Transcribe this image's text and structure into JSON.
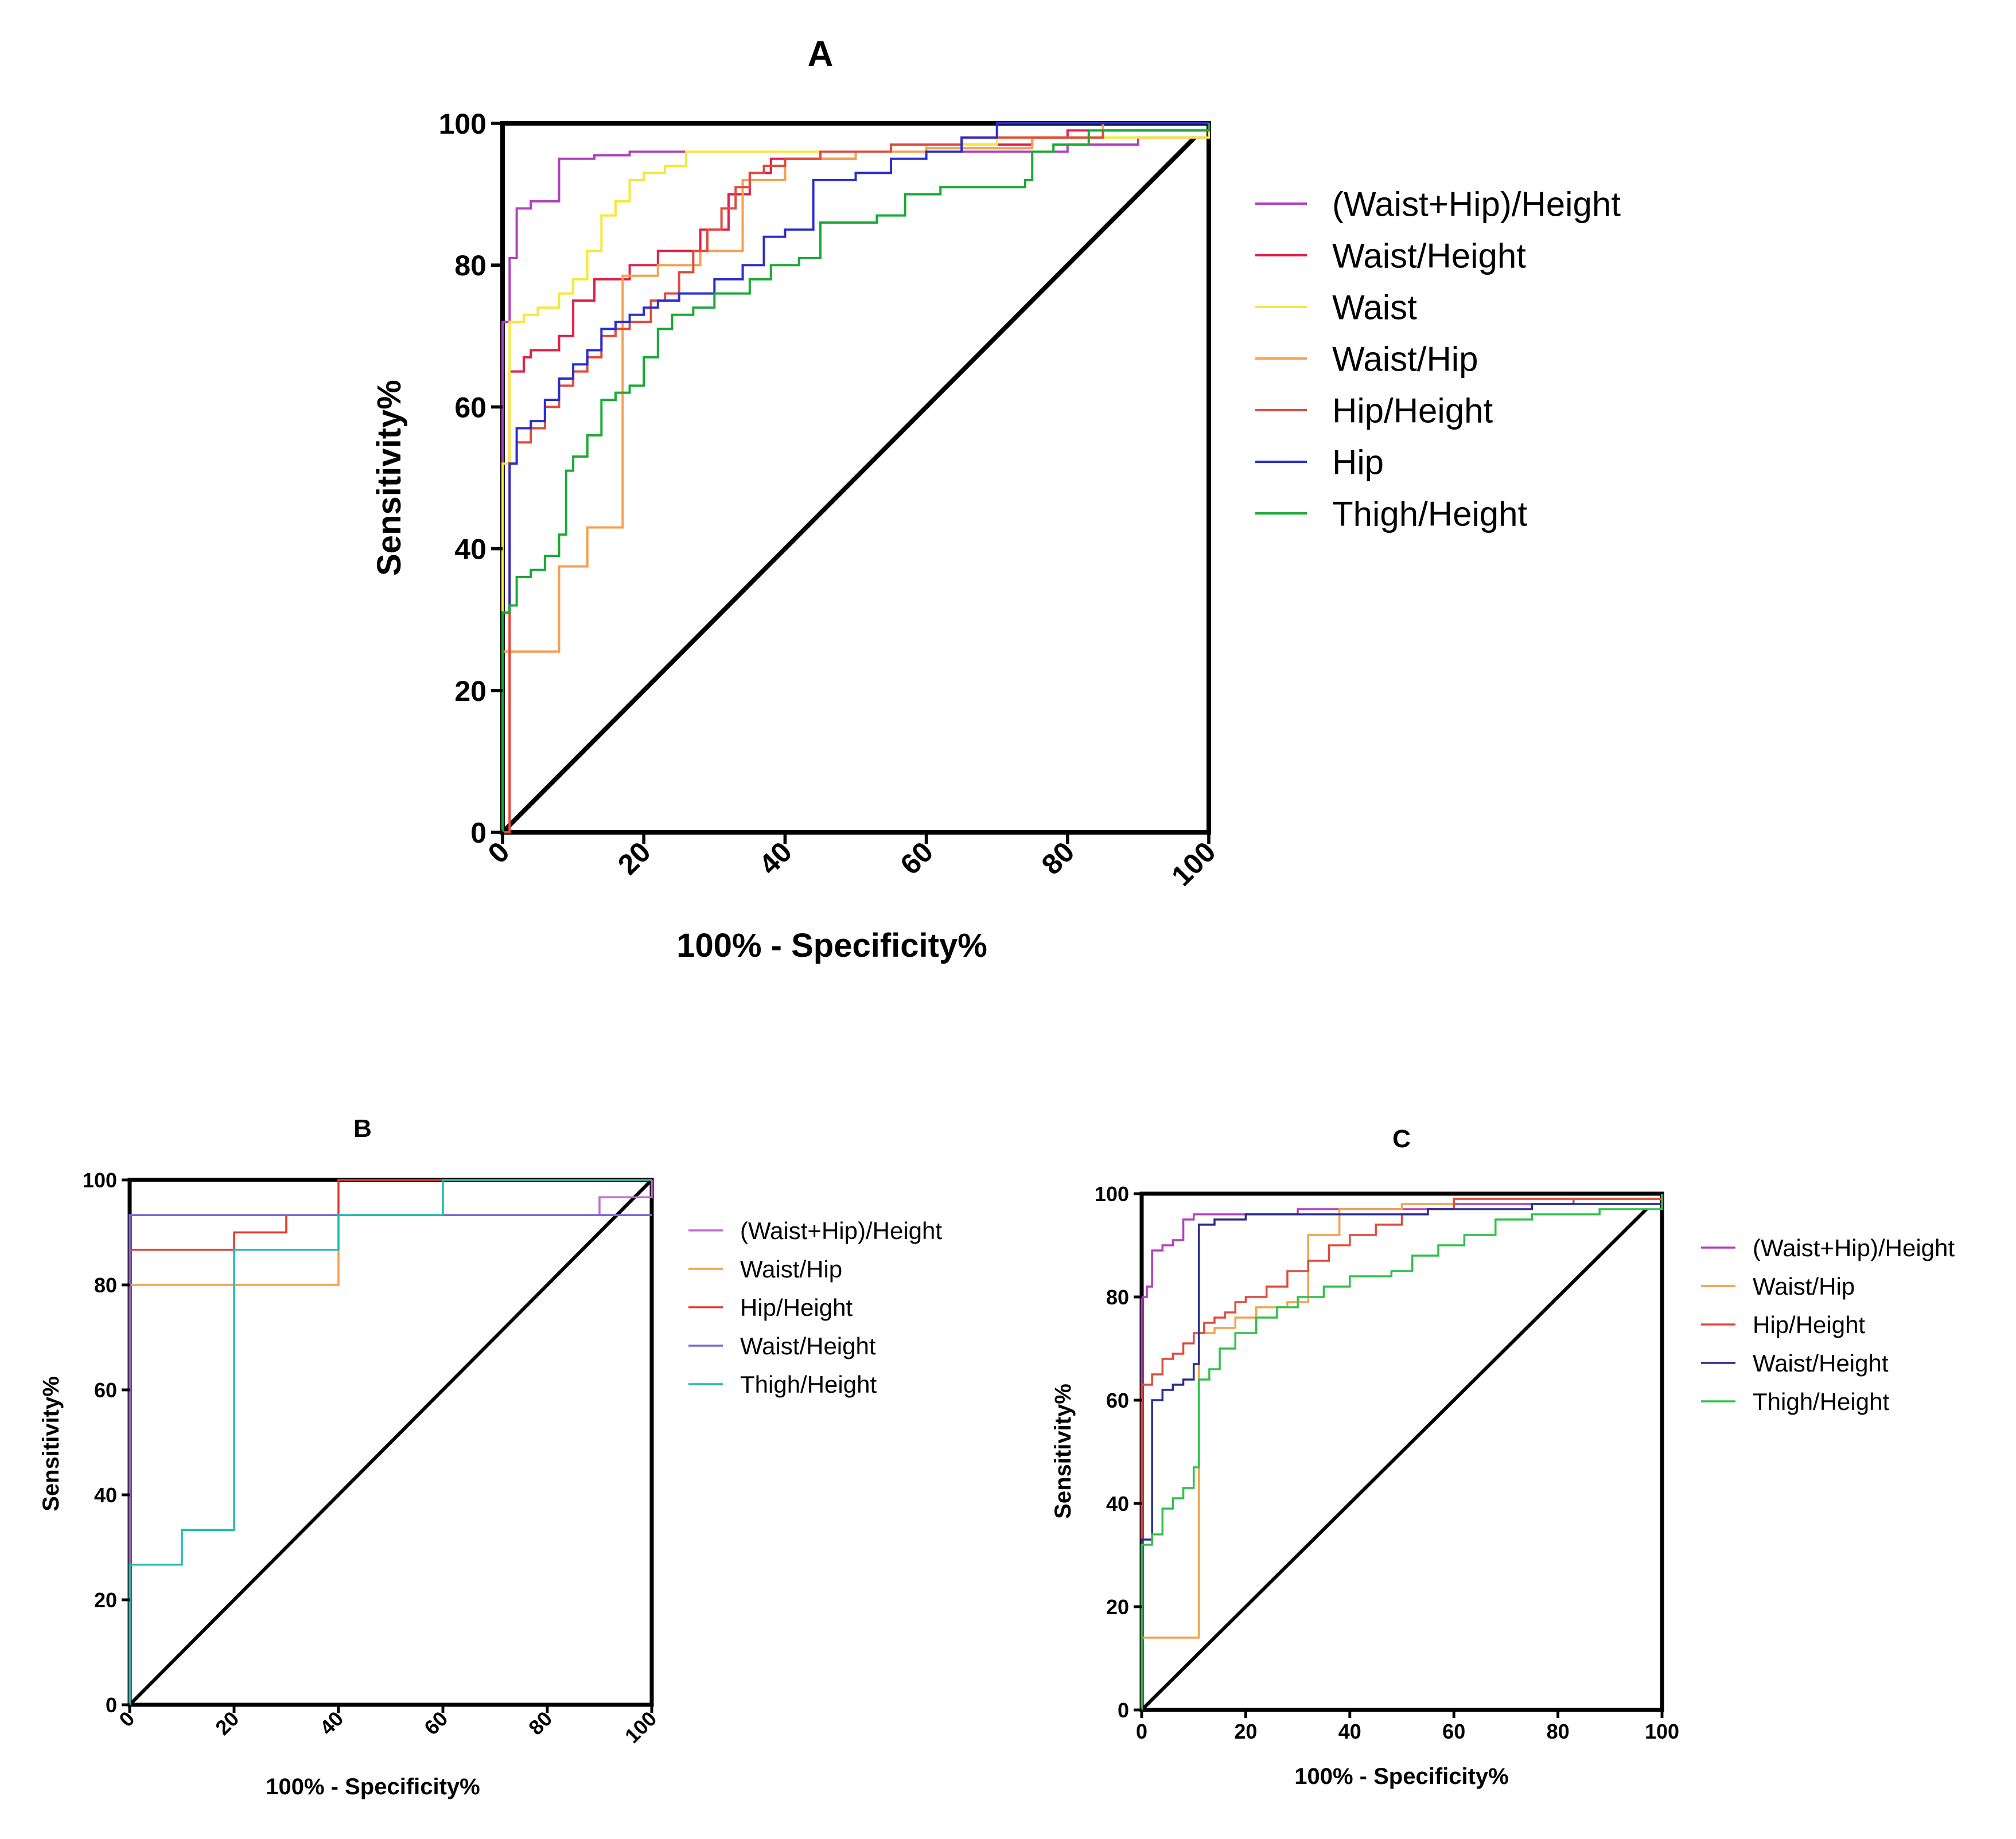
{
  "chart_data": [
    {
      "id": "A",
      "type": "line",
      "title": "A",
      "xlabel": "100% - Specificity%",
      "ylabel": "Sensitivity%",
      "xlim": [
        0,
        100
      ],
      "ylim": [
        0,
        100
      ],
      "xticks": [
        "0",
        "20",
        "40",
        "60",
        "80",
        "100"
      ],
      "yticks": [
        "0",
        "20",
        "40",
        "60",
        "80",
        "100"
      ],
      "reference_line": {
        "x": [
          0,
          98
        ],
        "y": [
          0,
          98
        ],
        "color": "#000000"
      },
      "series": [
        {
          "name": "(Waist+Hip)/Height",
          "color": "#b23fbf",
          "step": true,
          "x": [
            0,
            0,
            1,
            2,
            4,
            5,
            8,
            10,
            13,
            18,
            30,
            35,
            42,
            60,
            80,
            90,
            100
          ],
          "y": [
            0,
            72,
            81,
            88,
            89,
            89,
            95,
            95,
            95.5,
            96,
            96,
            96,
            96,
            96,
            97,
            98,
            100
          ]
        },
        {
          "name": "Waist/Height",
          "color": "#e0204a",
          "step": true,
          "x": [
            0,
            1,
            3,
            4,
            5,
            8,
            10,
            13,
            18,
            22,
            28,
            32,
            35,
            38,
            43,
            50,
            60,
            75,
            80,
            100
          ],
          "y": [
            0,
            65,
            67,
            68,
            68,
            70,
            75,
            78,
            80,
            82,
            85,
            90,
            93,
            95,
            95,
            96,
            97,
            98,
            99,
            100
          ]
        },
        {
          "name": "Waist",
          "color": "#f6e83a",
          "step": true,
          "x": [
            0,
            0,
            1,
            3,
            5,
            8,
            10,
            12,
            14,
            16,
            18,
            20,
            23,
            26,
            32,
            45,
            60,
            70,
            100
          ],
          "y": [
            0,
            52,
            72,
            73,
            74,
            76,
            78,
            82,
            87,
            89,
            92,
            93,
            94,
            96,
            96,
            96,
            97,
            98,
            100
          ]
        },
        {
          "name": "Waist/Hip",
          "color": "#f5a050",
          "step": true,
          "x": [
            0,
            0,
            8,
            8,
            12,
            12,
            17,
            17,
            22,
            22,
            28,
            34,
            34,
            40,
            50,
            60,
            75,
            85,
            100
          ],
          "y": [
            0,
            25.5,
            25.5,
            37.5,
            37.5,
            43,
            46,
            78.5,
            80,
            80,
            82,
            84,
            92,
            95,
            96,
            96.5,
            98,
            100,
            100
          ]
        },
        {
          "name": "Hip/Height",
          "color": "#e04b3c",
          "step": true,
          "x": [
            0,
            1,
            2,
            4,
            6,
            8,
            10,
            12,
            14,
            16,
            18,
            21,
            23,
            25,
            27,
            29,
            31,
            33,
            35,
            37,
            40,
            45,
            55,
            65,
            75,
            85,
            100
          ],
          "y": [
            0,
            52,
            55,
            57,
            60,
            63,
            65,
            67,
            70,
            71,
            72,
            75,
            76,
            79,
            82,
            85,
            88,
            91,
            93,
            94,
            95,
            96,
            97,
            98,
            98,
            99,
            100
          ]
        },
        {
          "name": "Hip",
          "color": "#2a2fcc",
          "step": true,
          "x": [
            0,
            0,
            1,
            2,
            4,
            6,
            8,
            10,
            12,
            14,
            16,
            18,
            20,
            22,
            25,
            30,
            34,
            37,
            40,
            44,
            44,
            50,
            55,
            60,
            65,
            70,
            80,
            100
          ],
          "y": [
            0,
            31,
            52,
            57,
            58,
            61,
            64,
            66,
            68,
            71,
            72,
            73,
            74,
            75,
            76,
            78,
            80,
            84,
            85,
            85,
            92,
            93,
            95,
            96,
            98,
            100,
            100,
            100
          ]
        },
        {
          "name": "Thigh/Height",
          "color": "#1aaa35",
          "step": true,
          "x": [
            0,
            0,
            1,
            2,
            4,
            6,
            8,
            9,
            10,
            12,
            14,
            16,
            18,
            20,
            22,
            24,
            27,
            30,
            35,
            38,
            42,
            45,
            53,
            57,
            62,
            70,
            74,
            75,
            78,
            80,
            83,
            100
          ],
          "y": [
            0,
            31,
            32,
            36,
            37,
            39,
            42,
            51,
            53,
            56,
            61,
            62,
            63,
            67,
            71,
            73,
            74,
            76,
            78,
            80,
            81,
            86,
            87,
            90,
            91,
            91,
            92,
            96,
            97,
            97,
            99,
            100
          ]
        }
      ],
      "legend": {
        "position": "right"
      }
    },
    {
      "id": "B",
      "type": "line",
      "title": "B",
      "xlabel": "100% - Specificity%",
      "ylabel": "Sensitivity%",
      "xlim": [
        0,
        100
      ],
      "ylim": [
        0,
        100
      ],
      "xticks": [
        "0",
        "20",
        "40",
        "60",
        "80",
        "100"
      ],
      "yticks": [
        "0",
        "20",
        "40",
        "60",
        "80",
        "100"
      ],
      "reference_line": {
        "x": [
          0,
          100
        ],
        "y": [
          0,
          100
        ],
        "color": "#000000"
      },
      "series": [
        {
          "name": "(Waist+Hip)/Height",
          "color": "#c46ad0",
          "step": true,
          "x": [
            0,
            0,
            90,
            90,
            100,
            100
          ],
          "y": [
            0,
            93.3,
            93.3,
            96.7,
            96.7,
            100
          ]
        },
        {
          "name": "Waist/Hip",
          "color": "#f2a24a",
          "step": true,
          "x": [
            0,
            0,
            40,
            40,
            100
          ],
          "y": [
            0,
            80,
            80,
            93.3,
            93.3
          ]
        },
        {
          "name": "Hip/Height",
          "color": "#e03a2a",
          "step": true,
          "x": [
            0,
            0,
            10,
            20,
            30,
            30,
            40,
            40,
            100
          ],
          "y": [
            0,
            86.7,
            86.7,
            90,
            90,
            93.3,
            93.3,
            100,
            100
          ]
        },
        {
          "name": "Waist/Height",
          "color": "#7a6ad8",
          "step": true,
          "x": [
            0,
            0,
            30,
            30,
            100
          ],
          "y": [
            0,
            93.3,
            93.3,
            93.3,
            93.3
          ]
        },
        {
          "name": "Thigh/Height",
          "color": "#1fbdb0",
          "step": true,
          "x": [
            0,
            0,
            10,
            10,
            20,
            20,
            40,
            60,
            60,
            100
          ],
          "y": [
            0,
            26.7,
            30,
            33.3,
            36.7,
            86.7,
            93.3,
            93.3,
            100,
            100
          ]
        }
      ],
      "legend": {
        "position": "right"
      }
    },
    {
      "id": "C",
      "type": "line",
      "title": "C",
      "xlabel": "100% - Specificity%",
      "ylabel": "Sensitivity%",
      "xlim": [
        0,
        100
      ],
      "ylim": [
        0,
        100
      ],
      "xticks": [
        "0",
        "20",
        "40",
        "60",
        "80",
        "100"
      ],
      "yticks": [
        "0",
        "20",
        "40",
        "60",
        "80",
        "100"
      ],
      "reference_line": {
        "x": [
          0,
          97
        ],
        "y": [
          0,
          97
        ],
        "color": "#000000"
      },
      "series": [
        {
          "name": "(Waist+Hip)/Height",
          "color": "#b23fbf",
          "step": true,
          "x": [
            0,
            0,
            1,
            2,
            4,
            6,
            8,
            10,
            15,
            30,
            60,
            83,
            100
          ],
          "y": [
            0,
            80,
            82,
            89,
            90,
            91,
            95,
            96,
            96,
            97,
            98,
            99,
            100
          ]
        },
        {
          "name": "Waist/Hip",
          "color": "#f2a24a",
          "step": true,
          "x": [
            0,
            0,
            11,
            11,
            14,
            18,
            22,
            28,
            32,
            32,
            38,
            38,
            50,
            60,
            100
          ],
          "y": [
            0,
            14,
            14,
            73,
            74,
            76,
            78,
            79,
            80,
            92,
            94,
            97,
            98,
            99,
            100
          ]
        },
        {
          "name": "Hip/Height",
          "color": "#e04b3c",
          "step": true,
          "x": [
            0,
            0,
            2,
            4,
            6,
            8,
            10,
            12,
            14,
            16,
            18,
            20,
            24,
            28,
            32,
            36,
            40,
            45,
            50,
            55,
            60,
            100
          ],
          "y": [
            0,
            63,
            65,
            68,
            69,
            71,
            73,
            75,
            76,
            77,
            79,
            80,
            82,
            85,
            87,
            90,
            92,
            94,
            96,
            97,
            99,
            100
          ]
        },
        {
          "name": "Waist/Height",
          "color": "#2b2c8c",
          "step": true,
          "x": [
            0,
            0,
            2,
            4,
            6,
            8,
            10,
            11,
            11,
            14,
            20,
            40,
            55,
            75,
            100
          ],
          "y": [
            0,
            33,
            60,
            62,
            63,
            64,
            67,
            67,
            94,
            95,
            96,
            96,
            97,
            98,
            100
          ]
        },
        {
          "name": "Thigh/Height",
          "color": "#2ec24a",
          "step": true,
          "x": [
            0,
            0,
            2,
            4,
            6,
            8,
            10,
            11,
            11,
            13,
            15,
            18,
            22,
            26,
            30,
            35,
            40,
            48,
            52,
            57,
            62,
            68,
            75,
            88,
            100
          ],
          "y": [
            0,
            32,
            34,
            39,
            41,
            43,
            47,
            47,
            64,
            66,
            70,
            73,
            76,
            78,
            80,
            82,
            84,
            85,
            88,
            90,
            92,
            95,
            96,
            97,
            100
          ]
        }
      ],
      "legend": {
        "position": "right"
      }
    }
  ]
}
